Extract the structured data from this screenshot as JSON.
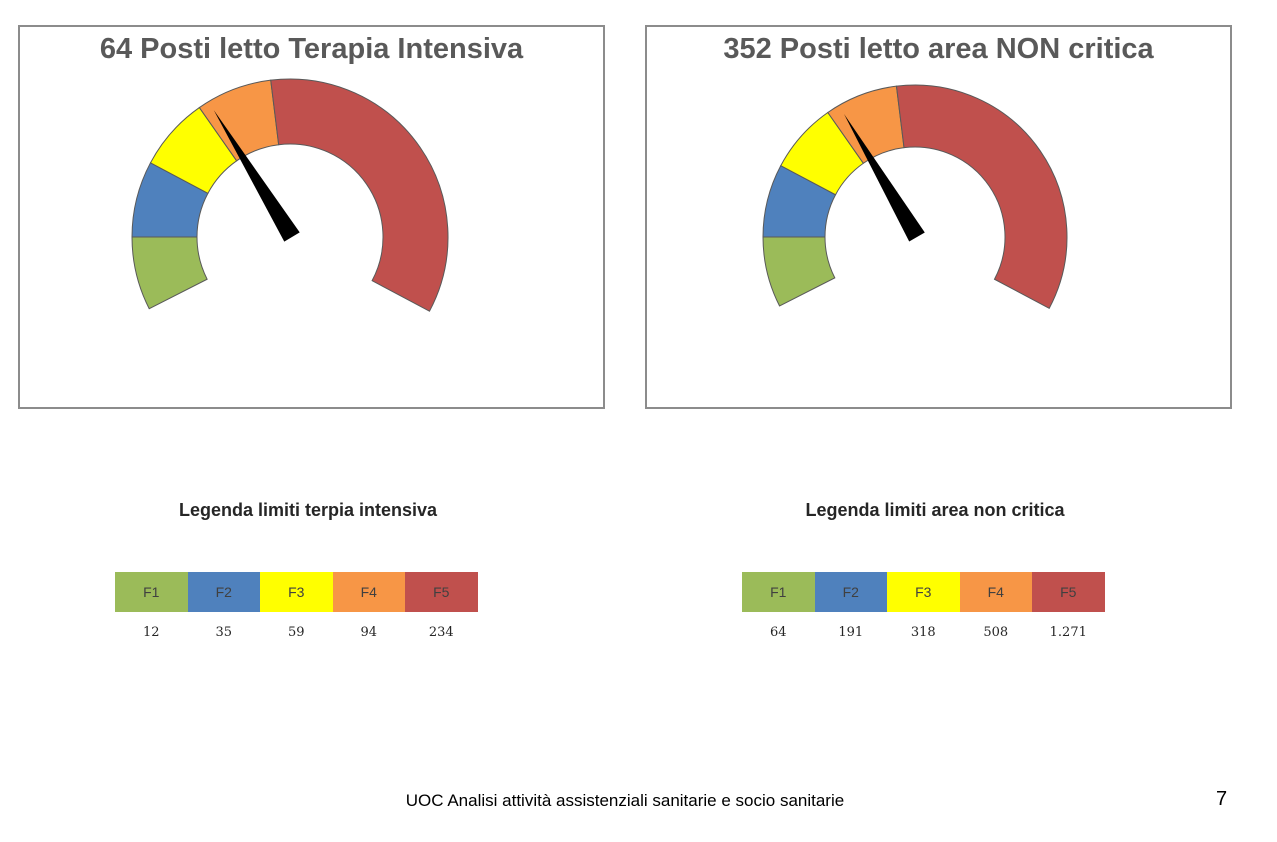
{
  "colors": {
    "F1": "#9bbb59",
    "F2": "#4f81bd",
    "F3": "#ffff00",
    "F4": "#f79646",
    "F5": "#c0504d",
    "needle": "#000000"
  },
  "chart_data": [
    {
      "type": "gauge",
      "title": "64 Posti letto Terapia Intensiva",
      "bands": [
        {
          "name": "F1",
          "limit": 12
        },
        {
          "name": "F2",
          "limit": 35
        },
        {
          "name": "F3",
          "limit": 59
        },
        {
          "name": "F4",
          "limit": 94
        },
        {
          "name": "F5",
          "limit": 234
        }
      ],
      "value": 64,
      "range": [
        0,
        234
      ]
    },
    {
      "type": "gauge",
      "title": "352 Posti letto area NON critica",
      "bands": [
        {
          "name": "F1",
          "limit": 64
        },
        {
          "name": "F2",
          "limit": 191
        },
        {
          "name": "F3",
          "limit": 318
        },
        {
          "name": "F4",
          "limit": 508
        },
        {
          "name": "F5",
          "limit": 1271
        }
      ],
      "value": 352,
      "range": [
        0,
        1271
      ]
    }
  ],
  "legends": [
    {
      "title": "Legenda limiti terpia intensiva",
      "labels": [
        "F1",
        "F2",
        "F3",
        "F4",
        "F5"
      ],
      "values": [
        "12",
        "35",
        "59",
        "94",
        "234"
      ]
    },
    {
      "title": "Legenda limiti area non critica",
      "labels": [
        "F1",
        "F2",
        "F3",
        "F4",
        "F5"
      ],
      "values": [
        "64",
        "191",
        "318",
        "508",
        "1.271"
      ]
    }
  ],
  "footer": "UOC Analisi attività assistenziali sanitarie e socio sanitarie",
  "page_number": "7"
}
